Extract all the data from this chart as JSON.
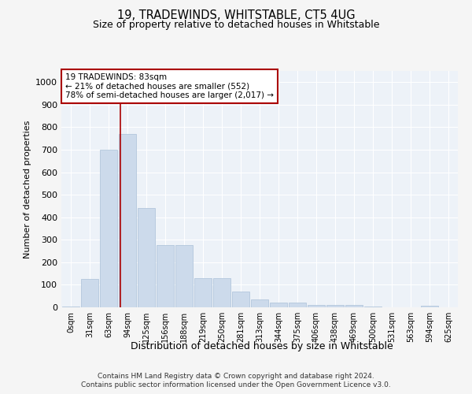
{
  "title1": "19, TRADEWINDS, WHITSTABLE, CT5 4UG",
  "title2": "Size of property relative to detached houses in Whitstable",
  "xlabel": "Distribution of detached houses by size in Whitstable",
  "ylabel": "Number of detached properties",
  "bins": [
    "0sqm",
    "31sqm",
    "63sqm",
    "94sqm",
    "125sqm",
    "156sqm",
    "188sqm",
    "219sqm",
    "250sqm",
    "281sqm",
    "313sqm",
    "344sqm",
    "375sqm",
    "406sqm",
    "438sqm",
    "469sqm",
    "500sqm",
    "531sqm",
    "563sqm",
    "594sqm",
    "625sqm"
  ],
  "values": [
    5,
    125,
    700,
    770,
    440,
    275,
    275,
    130,
    130,
    70,
    35,
    20,
    20,
    10,
    10,
    10,
    5,
    0,
    0,
    8,
    0
  ],
  "bar_color": "#ccdaeb",
  "bar_edge_color": "#aac0d8",
  "vline_color": "#aa0000",
  "annotation_text": "19 TRADEWINDS: 83sqm\n← 21% of detached houses are smaller (552)\n78% of semi-detached houses are larger (2,017) →",
  "annotation_box_color": "#ffffff",
  "annotation_box_edge": "#aa0000",
  "background_color": "#edf2f8",
  "grid_color": "#ffffff",
  "ylim": [
    0,
    1050
  ],
  "footer1": "Contains HM Land Registry data © Crown copyright and database right 2024.",
  "footer2": "Contains public sector information licensed under the Open Government Licence v3.0."
}
